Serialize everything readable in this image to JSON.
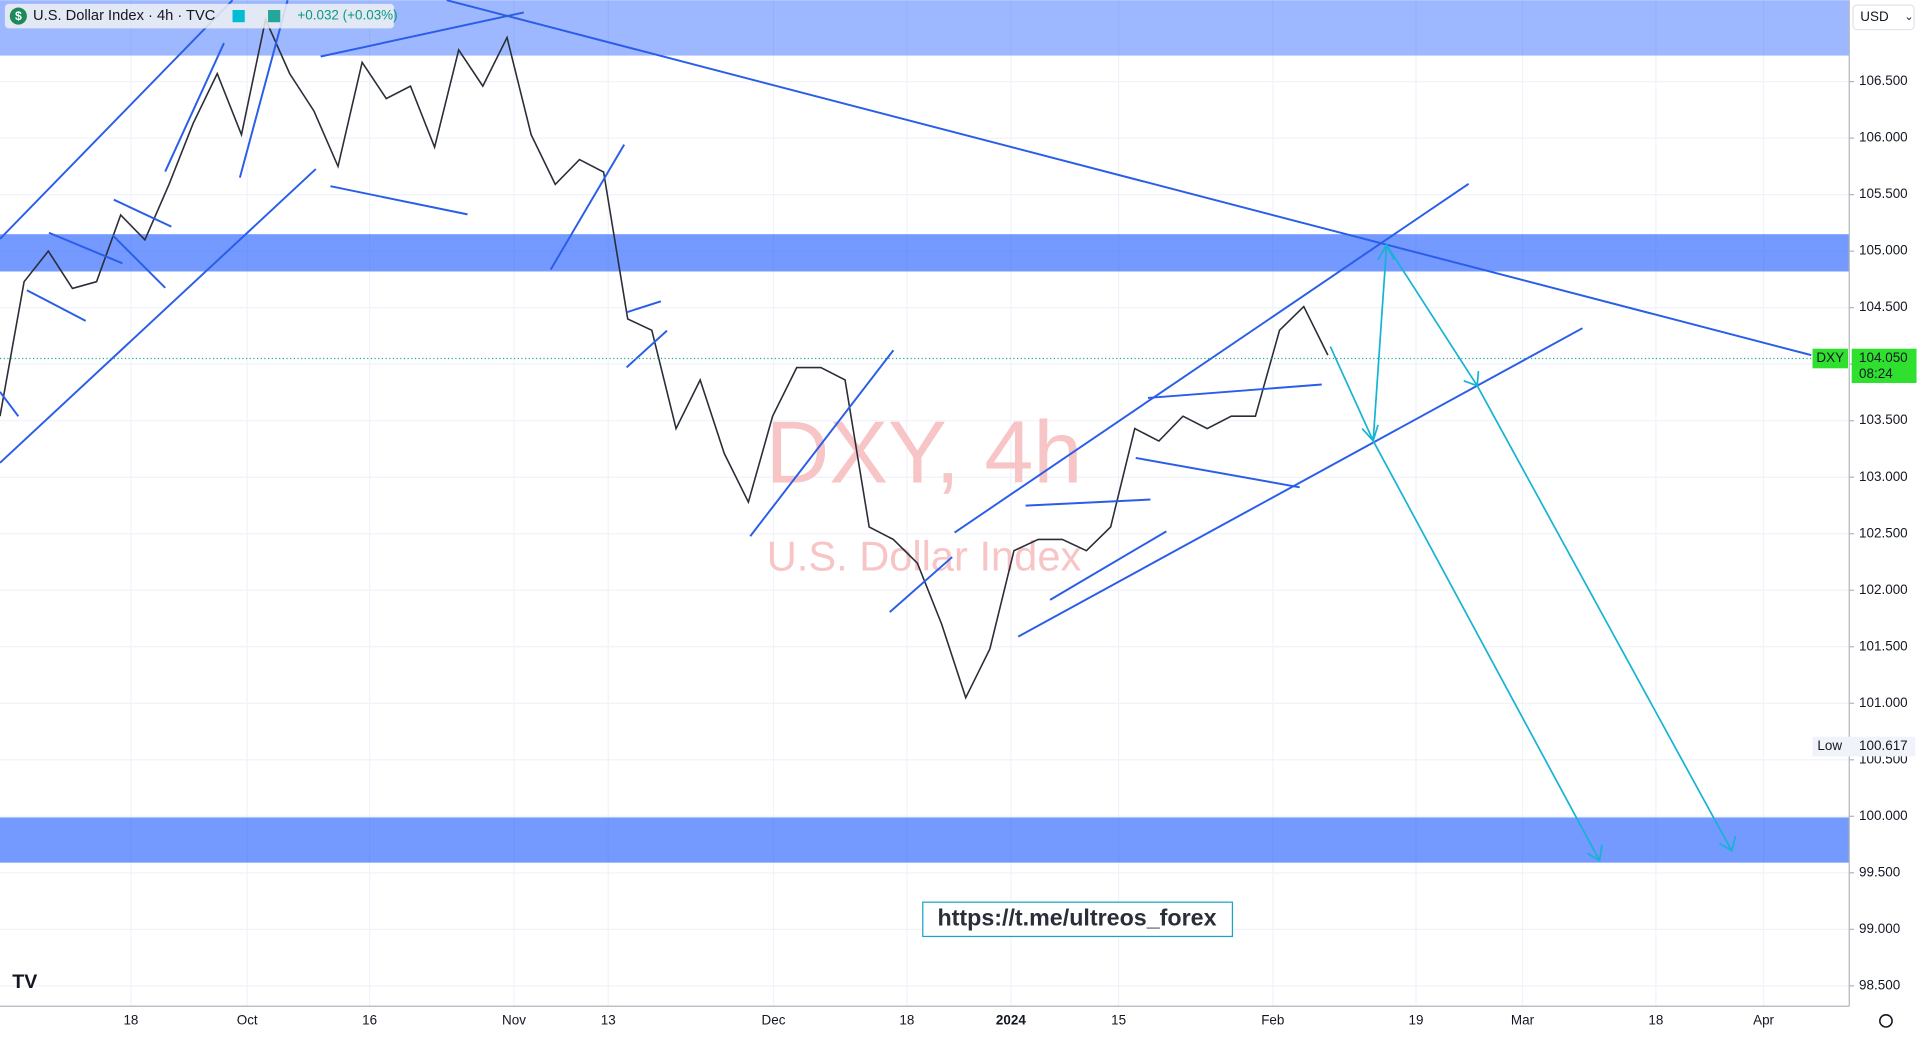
{
  "chart_data": {
    "type": "line",
    "title": "U.S. Dollar Index · 4h · TVC",
    "change": "+0.032 (+0.03%)",
    "currency": "USD",
    "watermark_symbol": "DXY, 4h",
    "watermark_name": "U.S. Dollar Index",
    "link": "https://t.me/ultreos_forex",
    "symbol": "DXY",
    "last_price": {
      "value": 104.05,
      "label": "104.050"
    },
    "countdown": "08:24",
    "low_label": "Low",
    "low": 100.617,
    "series": [
      {
        "color": "#2a2e39",
        "values": [
          103.54,
          104.73,
          105.0,
          104.67,
          104.73,
          105.32,
          105.1,
          105.59,
          106.13,
          106.57,
          106.03,
          107.05,
          106.57,
          106.24,
          105.75,
          106.67,
          106.35,
          106.46,
          105.92,
          106.78,
          106.46,
          106.89,
          106.03,
          105.59,
          105.81,
          105.7,
          104.4,
          104.3,
          103.43,
          103.86,
          103.21,
          102.78,
          103.54,
          103.97,
          103.97,
          103.86,
          102.56,
          102.45,
          102.24,
          101.7,
          101.05,
          101.48,
          102.35,
          102.45,
          102.45,
          102.35,
          102.56,
          103.43,
          103.32,
          103.54,
          103.43,
          103.54,
          103.54,
          104.3,
          104.51,
          104.08
        ]
      }
    ],
    "zones": [
      [
        107.22,
        106.73
      ],
      [
        105.15,
        104.82
      ],
      [
        99.99,
        99.59
      ]
    ],
    "zone_color": "#2962ff",
    "x_tick_labels": [
      "18",
      "Oct",
      "16",
      "Nov",
      "13",
      "Dec",
      "18",
      "2024",
      "15",
      "Feb",
      "19",
      "Mar",
      "18",
      "Apr"
    ],
    "ylim": [
      98.32,
      107.22
    ],
    "yticks": [
      {
        "value": 98.5,
        "label": "98.500"
      },
      {
        "value": 99,
        "label": "99.000"
      },
      {
        "value": 99.5,
        "label": "99.500"
      },
      {
        "value": 100,
        "label": "100.000"
      },
      {
        "value": 100.5,
        "label": "100.500"
      },
      {
        "value": 101,
        "label": "101.000"
      },
      {
        "value": 101.5,
        "label": "101.500"
      },
      {
        "value": 102,
        "label": "102.000"
      },
      {
        "value": 102.5,
        "label": "102.500"
      },
      {
        "value": 103,
        "label": "103.000"
      },
      {
        "value": 103.5,
        "label": "103.500"
      },
      {
        "value": 104,
        "label": "104.000"
      },
      {
        "value": 104.5,
        "label": "104.500"
      },
      {
        "value": 105,
        "label": "105.000"
      },
      {
        "value": 105.5,
        "label": "105.500"
      },
      {
        "value": 106,
        "label": "106.000"
      },
      {
        "value": 106.5,
        "label": "106.500"
      }
    ],
    "grid": true
  }
}
